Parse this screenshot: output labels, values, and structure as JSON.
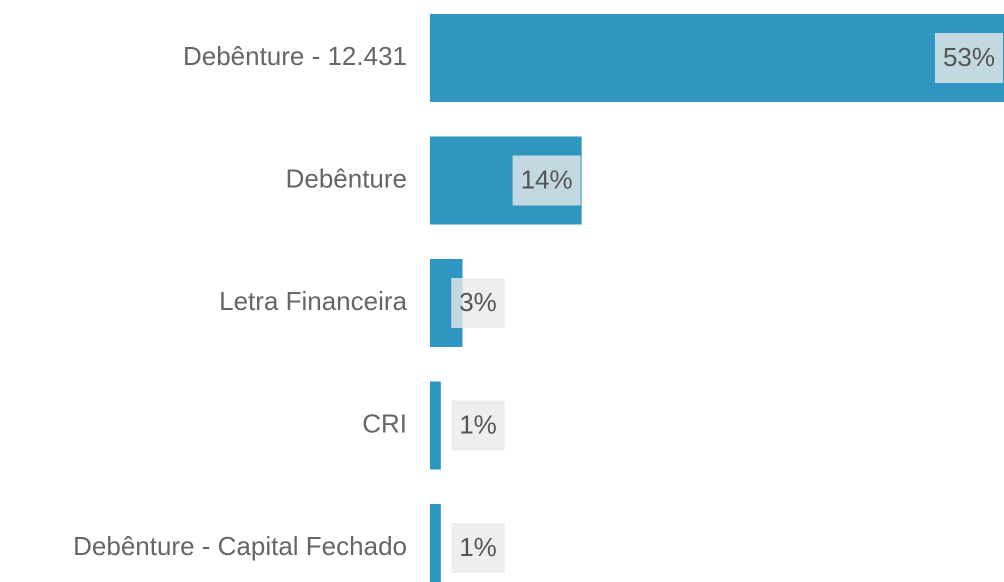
{
  "chart_data": {
    "type": "bar",
    "orientation": "horizontal",
    "categories": [
      "Debênture - 12.431",
      "Debênture",
      "Letra Financeira",
      "CRI",
      "Debênture - Capital Fechado"
    ],
    "values": [
      53,
      14,
      3,
      1,
      1
    ],
    "value_labels": [
      "53%",
      "14%",
      "3%",
      "1%",
      "1%"
    ],
    "color": "#2e96c0",
    "xlim": [
      0,
      53
    ]
  }
}
